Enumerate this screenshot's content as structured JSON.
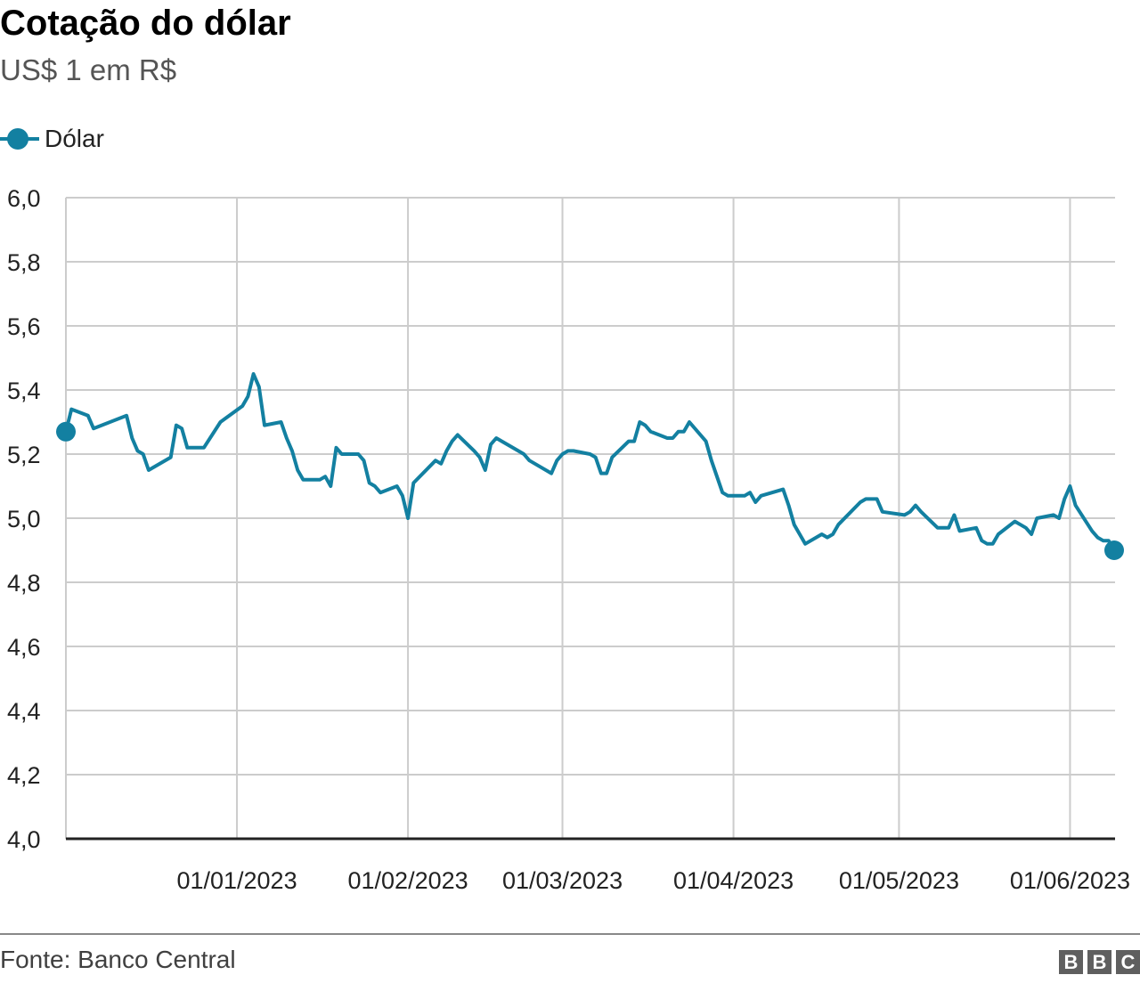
{
  "header": {
    "title": "Cotação do dólar",
    "subtitle": "US$ 1 em R$"
  },
  "legend": {
    "items": [
      {
        "label": "Dólar",
        "color": "#1380a1"
      }
    ]
  },
  "footer": {
    "source": "Fonte: Banco Central",
    "logo_letters": [
      "B",
      "B",
      "C"
    ]
  },
  "chart_data": {
    "type": "line",
    "title": "Cotação do dólar",
    "subtitle": "US$ 1 em R$",
    "xlabel": "",
    "ylabel": "",
    "ylim": [
      4.0,
      6.0
    ],
    "yticks": [
      "4,0",
      "4,2",
      "4,4",
      "4,6",
      "4,8",
      "5,0",
      "5,2",
      "5,4",
      "5,6",
      "5,8",
      "6,0"
    ],
    "xticks": [
      "01/01/2023",
      "01/02/2023",
      "01/03/2023",
      "01/04/2023",
      "01/05/2023",
      "01/06/2023"
    ],
    "grid": true,
    "legend_position": "top-left",
    "series": [
      {
        "name": "Dólar",
        "color": "#1380a1",
        "note": "values approx., read from pixels; x = approximate date",
        "points": [
          [
            "2022-12-01",
            5.27
          ],
          [
            "2022-12-02",
            5.34
          ],
          [
            "2022-12-05",
            5.32
          ],
          [
            "2022-12-06",
            5.28
          ],
          [
            "2022-12-12",
            5.32
          ],
          [
            "2022-12-13",
            5.25
          ],
          [
            "2022-12-14",
            5.21
          ],
          [
            "2022-12-15",
            5.2
          ],
          [
            "2022-12-16",
            5.15
          ],
          [
            "2022-12-20",
            5.19
          ],
          [
            "2022-12-21",
            5.29
          ],
          [
            "2022-12-22",
            5.28
          ],
          [
            "2022-12-23",
            5.22
          ],
          [
            "2022-12-26",
            5.22
          ],
          [
            "2022-12-29",
            5.3
          ],
          [
            "2023-01-02",
            5.35
          ],
          [
            "2023-01-03",
            5.38
          ],
          [
            "2023-01-04",
            5.45
          ],
          [
            "2023-01-05",
            5.41
          ],
          [
            "2023-01-06",
            5.29
          ],
          [
            "2023-01-09",
            5.3
          ],
          [
            "2023-01-10",
            5.25
          ],
          [
            "2023-01-11",
            5.21
          ],
          [
            "2023-01-12",
            5.15
          ],
          [
            "2023-01-13",
            5.12
          ],
          [
            "2023-01-16",
            5.12
          ],
          [
            "2023-01-17",
            5.13
          ],
          [
            "2023-01-18",
            5.1
          ],
          [
            "2023-01-19",
            5.22
          ],
          [
            "2023-01-20",
            5.2
          ],
          [
            "2023-01-23",
            5.2
          ],
          [
            "2023-01-24",
            5.18
          ],
          [
            "2023-01-25",
            5.11
          ],
          [
            "2023-01-26",
            5.1
          ],
          [
            "2023-01-27",
            5.08
          ],
          [
            "2023-01-30",
            5.1
          ],
          [
            "2023-01-31",
            5.07
          ],
          [
            "2023-02-01",
            5.0
          ],
          [
            "2023-02-02",
            5.11
          ],
          [
            "2023-02-06",
            5.18
          ],
          [
            "2023-02-07",
            5.17
          ],
          [
            "2023-02-08",
            5.21
          ],
          [
            "2023-02-09",
            5.24
          ],
          [
            "2023-02-10",
            5.26
          ],
          [
            "2023-02-13",
            5.21
          ],
          [
            "2023-02-14",
            5.19
          ],
          [
            "2023-02-15",
            5.15
          ],
          [
            "2023-02-16",
            5.23
          ],
          [
            "2023-02-17",
            5.25
          ],
          [
            "2023-02-21",
            5.21
          ],
          [
            "2023-02-22",
            5.2
          ],
          [
            "2023-02-23",
            5.18
          ],
          [
            "2023-02-24",
            5.17
          ],
          [
            "2023-02-27",
            5.14
          ],
          [
            "2023-02-28",
            5.18
          ],
          [
            "2023-03-01",
            5.2
          ],
          [
            "2023-03-02",
            5.21
          ],
          [
            "2023-03-03",
            5.21
          ],
          [
            "2023-03-06",
            5.2
          ],
          [
            "2023-03-07",
            5.19
          ],
          [
            "2023-03-08",
            5.14
          ],
          [
            "2023-03-09",
            5.14
          ],
          [
            "2023-03-10",
            5.19
          ],
          [
            "2023-03-13",
            5.24
          ],
          [
            "2023-03-14",
            5.24
          ],
          [
            "2023-03-15",
            5.3
          ],
          [
            "2023-03-16",
            5.29
          ],
          [
            "2023-03-17",
            5.27
          ],
          [
            "2023-03-20",
            5.25
          ],
          [
            "2023-03-21",
            5.25
          ],
          [
            "2023-03-22",
            5.27
          ],
          [
            "2023-03-23",
            5.27
          ],
          [
            "2023-03-24",
            5.3
          ],
          [
            "2023-03-27",
            5.24
          ],
          [
            "2023-03-28",
            5.18
          ],
          [
            "2023-03-29",
            5.13
          ],
          [
            "2023-03-30",
            5.08
          ],
          [
            "2023-03-31",
            5.07
          ],
          [
            "2023-04-03",
            5.07
          ],
          [
            "2023-04-04",
            5.08
          ],
          [
            "2023-04-05",
            5.05
          ],
          [
            "2023-04-06",
            5.07
          ],
          [
            "2023-04-10",
            5.09
          ],
          [
            "2023-04-11",
            5.04
          ],
          [
            "2023-04-12",
            4.98
          ],
          [
            "2023-04-13",
            4.95
          ],
          [
            "2023-04-14",
            4.92
          ],
          [
            "2023-04-17",
            4.95
          ],
          [
            "2023-04-18",
            4.94
          ],
          [
            "2023-04-19",
            4.95
          ],
          [
            "2023-04-20",
            4.98
          ],
          [
            "2023-04-24",
            5.05
          ],
          [
            "2023-04-25",
            5.06
          ],
          [
            "2023-04-26",
            5.06
          ],
          [
            "2023-04-27",
            5.06
          ],
          [
            "2023-04-28",
            5.02
          ],
          [
            "2023-05-02",
            5.01
          ],
          [
            "2023-05-03",
            5.02
          ],
          [
            "2023-05-04",
            5.04
          ],
          [
            "2023-05-05",
            5.02
          ],
          [
            "2023-05-08",
            4.97
          ],
          [
            "2023-05-09",
            4.97
          ],
          [
            "2023-05-10",
            4.97
          ],
          [
            "2023-05-11",
            5.01
          ],
          [
            "2023-05-12",
            4.96
          ],
          [
            "2023-05-15",
            4.97
          ],
          [
            "2023-05-16",
            4.93
          ],
          [
            "2023-05-17",
            4.92
          ],
          [
            "2023-05-18",
            4.92
          ],
          [
            "2023-05-19",
            4.95
          ],
          [
            "2023-05-22",
            4.99
          ],
          [
            "2023-05-23",
            4.98
          ],
          [
            "2023-05-24",
            4.97
          ],
          [
            "2023-05-25",
            4.95
          ],
          [
            "2023-05-26",
            5.0
          ],
          [
            "2023-05-29",
            5.01
          ],
          [
            "2023-05-30",
            5.0
          ],
          [
            "2023-05-31",
            5.06
          ],
          [
            "2023-06-01",
            5.1
          ],
          [
            "2023-06-02",
            5.04
          ],
          [
            "2023-06-05",
            4.96
          ],
          [
            "2023-06-06",
            4.94
          ],
          [
            "2023-06-07",
            4.93
          ],
          [
            "2023-06-08",
            4.93
          ],
          [
            "2023-06-09",
            4.9
          ]
        ]
      }
    ]
  }
}
